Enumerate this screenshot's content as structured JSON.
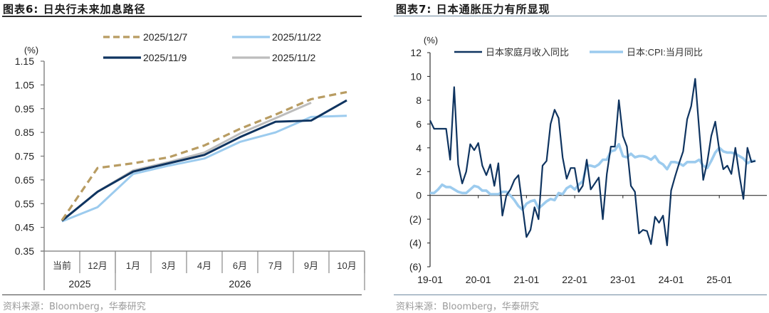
{
  "left": {
    "title": "图表6:  日央行未来加息路径",
    "source": "资料来源：Bloomberg，华泰研究",
    "chart_data": {
      "type": "line",
      "ylabel": "(%)",
      "ylim": [
        0.35,
        1.15
      ],
      "yticks": [
        "1.15",
        "1.05",
        "0.95",
        "0.85",
        "0.75",
        "0.65",
        "0.55",
        "0.45",
        "0.35"
      ],
      "ytick_values": [
        1.15,
        1.05,
        0.95,
        0.85,
        0.75,
        0.65,
        0.55,
        0.45,
        0.35
      ],
      "categories": [
        "当前",
        "12月",
        "1月",
        "3月",
        "4月",
        "6月",
        "7月",
        "9月",
        "10月"
      ],
      "groups": [
        {
          "label": "2025",
          "span": 2
        },
        {
          "label": "2026",
          "span": 7
        }
      ],
      "legend_position": "top",
      "series": [
        {
          "name": "2025/12/7",
          "color": "#b89c62",
          "dashed": true,
          "values": [
            0.48,
            0.7,
            0.72,
            0.745,
            0.795,
            0.865,
            0.925,
            0.99,
            1.02
          ]
        },
        {
          "name": "2025/11/22",
          "color": "#9ccbee",
          "dashed": false,
          "values": [
            0.475,
            0.535,
            0.675,
            0.71,
            0.74,
            0.81,
            0.85,
            0.915,
            0.92
          ]
        },
        {
          "name": "2025/11/9",
          "color": "#0f3460",
          "dashed": false,
          "values": [
            0.478,
            0.6,
            0.685,
            0.72,
            0.755,
            0.83,
            0.895,
            0.9,
            0.985
          ]
        },
        {
          "name": "2025/11/2",
          "color": "#bdbdbd",
          "dashed": false,
          "values": [
            0.478,
            0.6,
            0.69,
            0.725,
            0.765,
            0.845,
            0.91,
            0.975,
            null
          ]
        }
      ]
    }
  },
  "right": {
    "title": "图表7:  日本通胀压力有所显现",
    "source": "资料来源：Bloomberg，华泰研究",
    "chart_data": {
      "type": "line",
      "ylabel": "(%)",
      "ylim": [
        -6,
        12
      ],
      "yticks": [
        "12",
        "10",
        "8",
        "6",
        "4",
        "2",
        "0",
        "(2)",
        "(4)",
        "(6)"
      ],
      "ytick_values": [
        12,
        10,
        8,
        6,
        4,
        2,
        0,
        -2,
        -4,
        -6
      ],
      "xticks": [
        "19-01",
        "20-01",
        "21-01",
        "22-01",
        "23-01",
        "24-01",
        "25-01"
      ],
      "x_start": "19-01",
      "frequency": "monthly",
      "legend_position": "top",
      "series": [
        {
          "name": "日本家庭月收入同比",
          "color": "#0f3460",
          "values": [
            6.3,
            5.6,
            5.6,
            5.6,
            5.6,
            3.0,
            9.1,
            2.6,
            1.0,
            2.0,
            4.3,
            3.8,
            4.4,
            2.5,
            1.7,
            2.6,
            0.8,
            2.7,
            -1.7,
            0.0,
            0.5,
            1.3,
            1.7,
            -0.9,
            -3.5,
            -2.9,
            -1.0,
            -2.0,
            2.5,
            2.9,
            6.0,
            7.2,
            6.5,
            3.2,
            1.4,
            2.3,
            2.3,
            0.3,
            0.8,
            3.0,
            0.5,
            1.0,
            1.5,
            -2.0,
            1.8,
            4.1,
            4.1,
            8.0,
            5.0,
            4.1,
            0.8,
            0.3,
            -3.2,
            -2.9,
            -3.0,
            -4.1,
            -1.8,
            -2.3,
            -1.7,
            -4.2,
            0.4,
            1.6,
            2.7,
            3.7,
            6.4,
            7.5,
            9.8,
            5.5,
            1.3,
            2.8,
            5.0,
            6.2,
            3.8,
            2.2,
            2.5,
            1.8,
            4.0,
            1.7,
            -0.3,
            4.0,
            2.8,
            2.9
          ]
        },
        {
          "name": "日本:CPI:当月同比",
          "color": "#9ccbee",
          "values": [
            0.2,
            0.2,
            0.5,
            0.9,
            0.7,
            0.7,
            0.5,
            0.3,
            0.2,
            0.2,
            0.5,
            0.8,
            0.7,
            0.4,
            0.4,
            0.1,
            0.1,
            0.1,
            0.3,
            0.3,
            0.0,
            -0.4,
            -0.9,
            -1.2,
            -0.7,
            -0.5,
            -0.4,
            -1.1,
            -0.8,
            -0.5,
            -0.3,
            -0.4,
            0.2,
            0.1,
            0.6,
            0.8,
            0.5,
            0.9,
            1.2,
            2.5,
            2.5,
            2.4,
            2.6,
            3.0,
            3.0,
            3.7,
            3.8,
            4.3,
            3.3,
            3.2,
            3.5,
            3.2,
            3.3,
            3.3,
            3.2,
            3.0,
            3.3,
            2.8,
            2.6,
            2.2,
            2.8,
            2.8,
            2.7,
            2.5,
            2.8,
            2.8,
            2.8,
            3.0,
            2.5,
            2.3,
            2.9,
            3.6,
            4.0,
            3.7,
            3.6,
            3.6,
            3.5,
            3.3,
            3.1,
            2.7,
            2.9,
            2.9
          ]
        }
      ]
    }
  }
}
